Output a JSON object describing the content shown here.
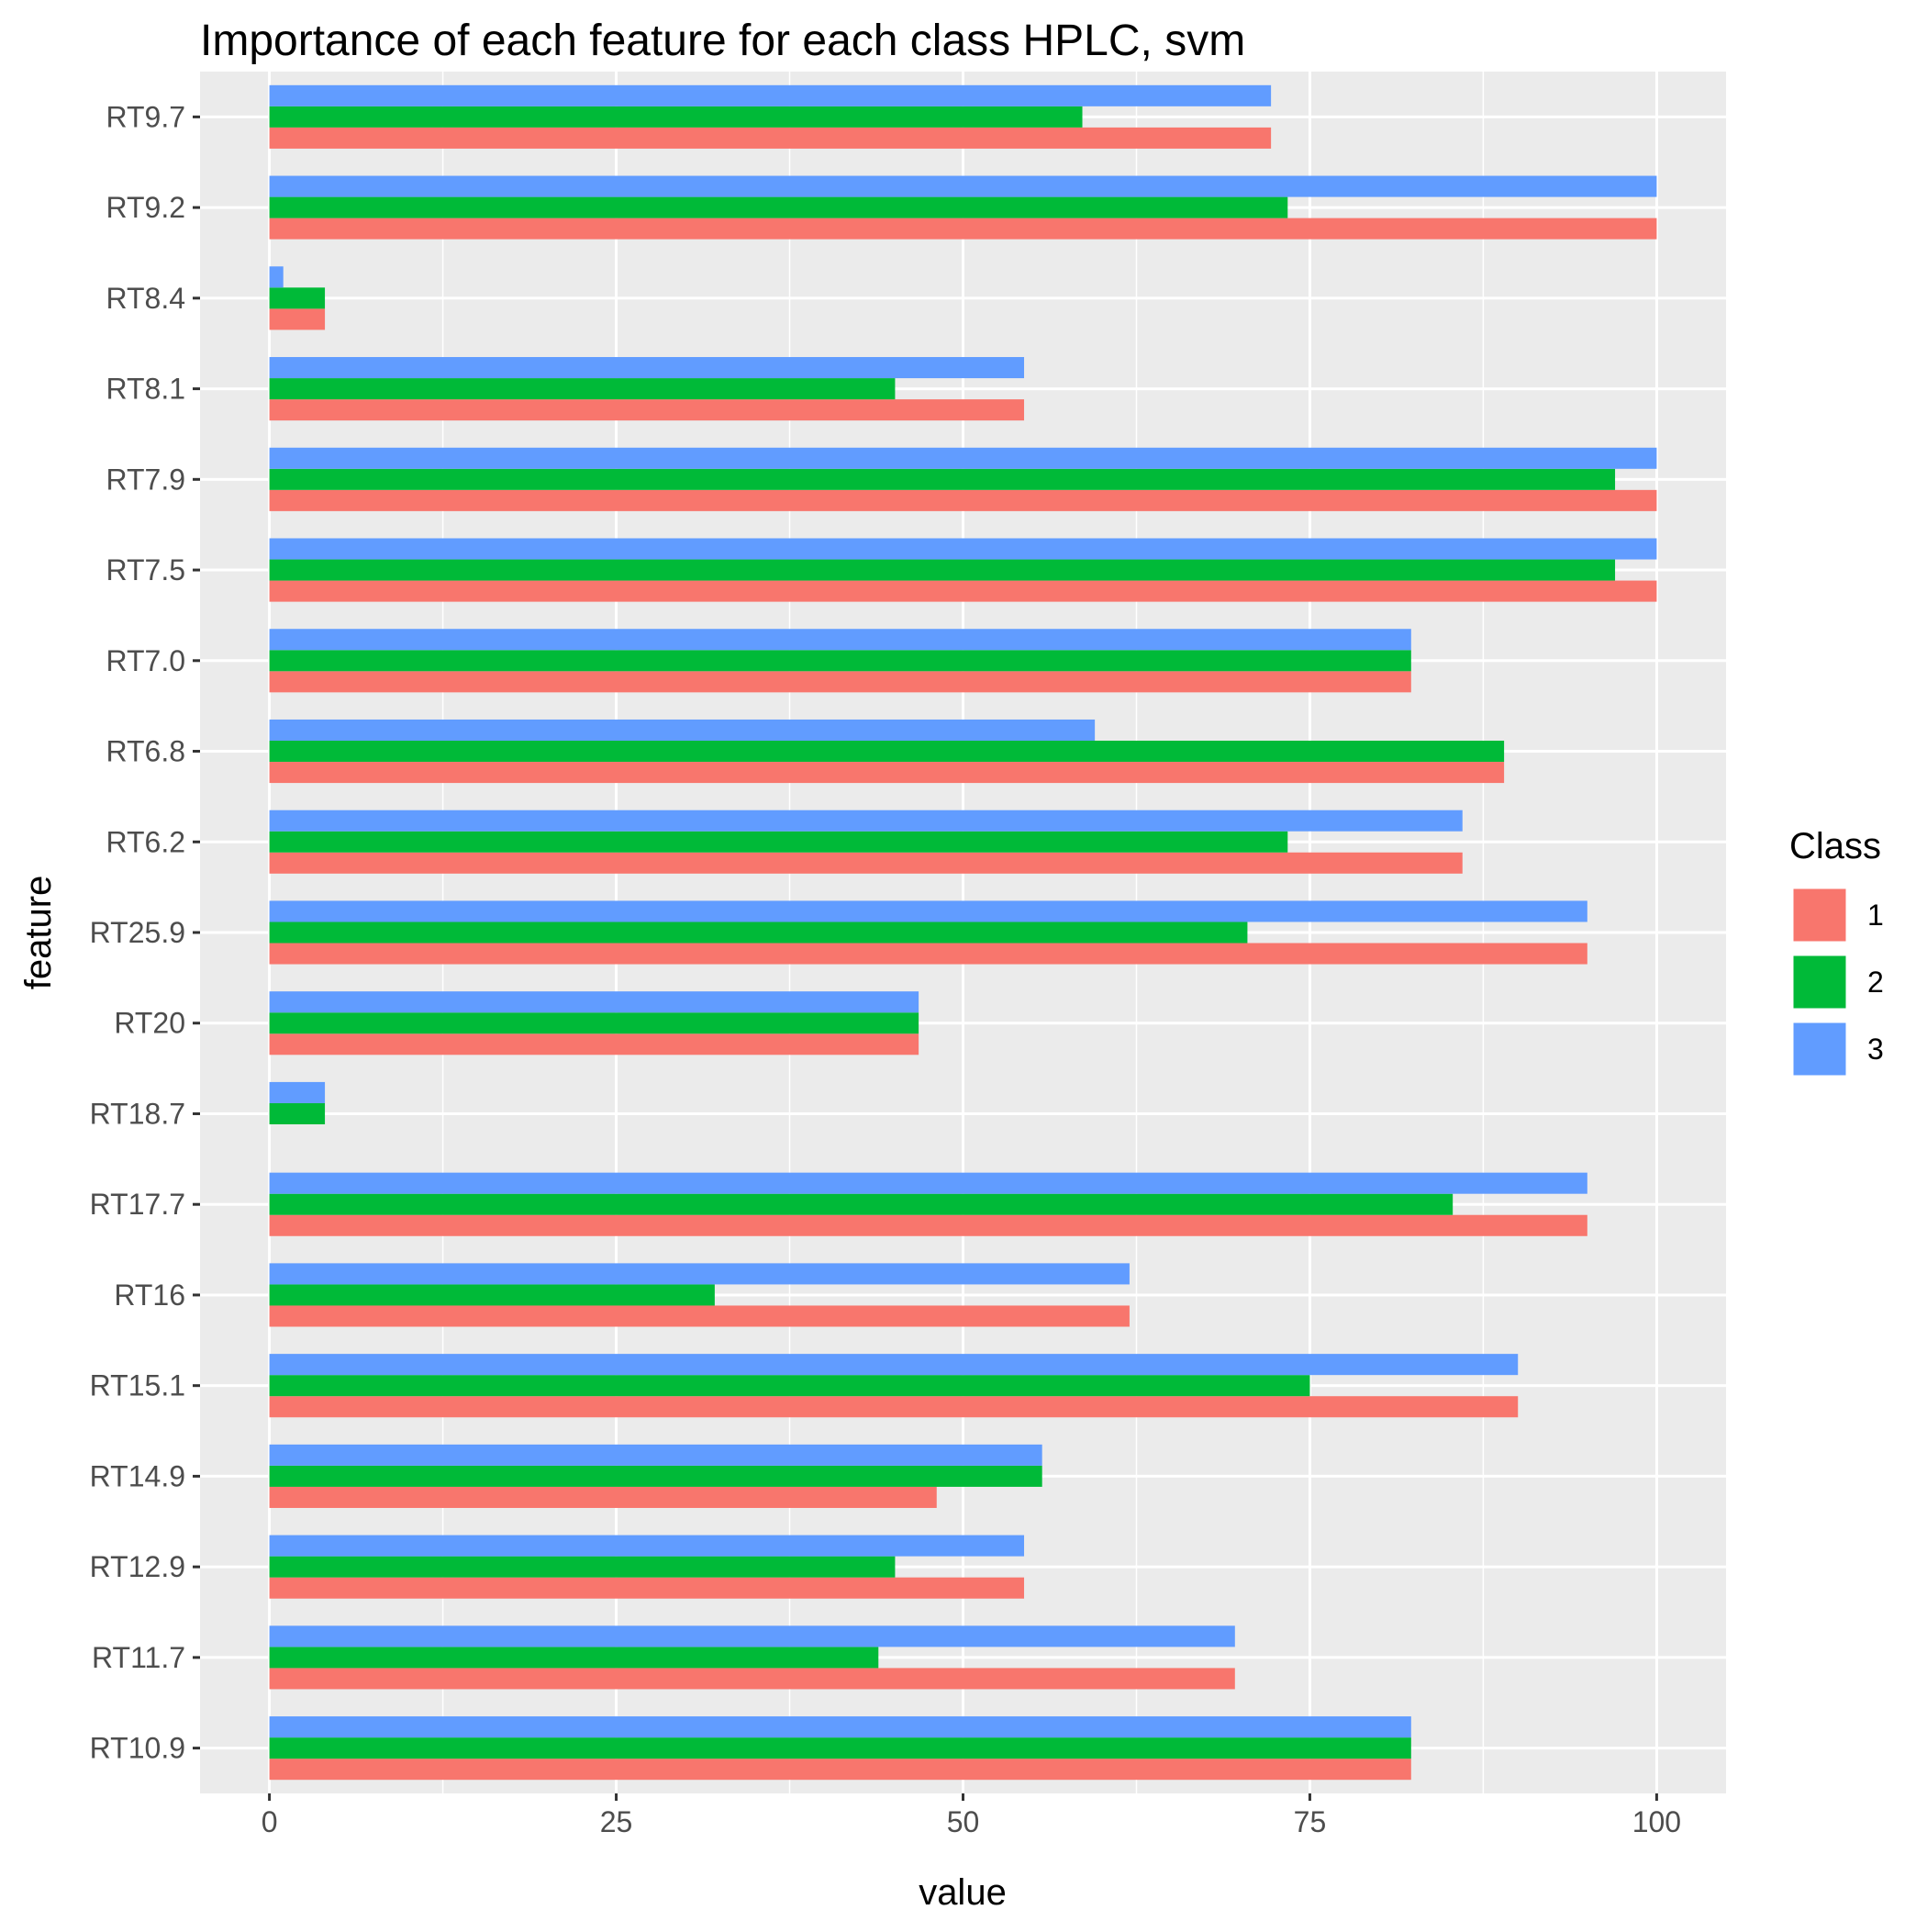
{
  "chart_data": {
    "type": "bar",
    "orientation": "horizontal",
    "title": "Importance of each feature for each class HPLC, svm",
    "xlabel": "value",
    "ylabel": "feature",
    "xlim": [
      -5,
      105
    ],
    "x_ticks": [
      0,
      25,
      50,
      75,
      100
    ],
    "grid": true,
    "categories": [
      "RT9.7",
      "RT9.2",
      "RT8.4",
      "RT8.1",
      "RT7.9",
      "RT7.5",
      "RT7.0",
      "RT6.8",
      "RT6.2",
      "RT25.9",
      "RT20",
      "RT18.7",
      "RT17.7",
      "RT16",
      "RT15.1",
      "RT14.9",
      "RT12.9",
      "RT11.7",
      "RT10.9"
    ],
    "series": [
      {
        "name": "1",
        "color": "#F8766D",
        "values": [
          72.2,
          100,
          4,
          54.4,
          100,
          100,
          82.3,
          89,
          86,
          95,
          46.8,
          0,
          95,
          62,
          90,
          48.1,
          54.4,
          69.6,
          82.3
        ]
      },
      {
        "name": "2",
        "color": "#00BA38",
        "values": [
          58.6,
          73.4,
          4,
          45.1,
          97,
          97,
          82.3,
          89,
          73.4,
          70.5,
          46.8,
          4,
          85.3,
          32.1,
          75,
          55.7,
          45.1,
          43.9,
          82.3
        ]
      },
      {
        "name": "3",
        "color": "#619CFF",
        "values": [
          72.2,
          100,
          1,
          54.4,
          100,
          100,
          82.3,
          59.5,
          86,
          95,
          46.8,
          4,
          95,
          62,
          90,
          55.7,
          54.4,
          69.6,
          82.3
        ]
      }
    ],
    "legend": {
      "title": "Class",
      "position": "right"
    }
  }
}
